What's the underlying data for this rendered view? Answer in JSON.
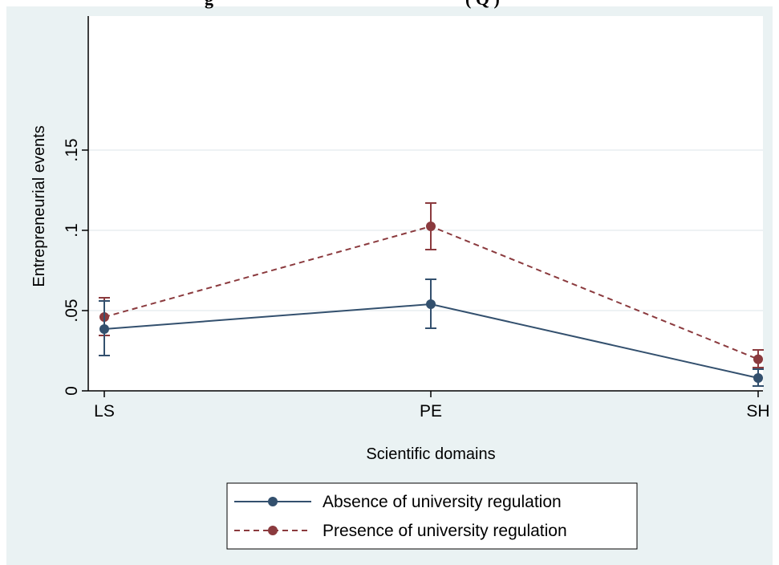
{
  "chart_data": {
    "type": "line",
    "title": "g",
    "title_suffix": "(  Q  )",
    "xlabel": "Scientific domains",
    "ylabel": "Entrepreneurial events",
    "categories": [
      "LS",
      "PE",
      "SH"
    ],
    "ylim": [
      0,
      0.15
    ],
    "yticks": [
      {
        "value": 0,
        "label": "0"
      },
      {
        "value": 0.05,
        "label": ".05"
      },
      {
        "value": 0.1,
        "label": ".1"
      },
      {
        "value": 0.15,
        "label": ".15"
      }
    ],
    "grid": true,
    "legend_position": "bottom",
    "series": [
      {
        "name": "Absence of university regulation",
        "color": "#33506e",
        "dash": "solid",
        "values": [
          0.0385,
          0.054,
          0.008
        ],
        "ci_low": [
          0.022,
          0.039,
          0.003
        ],
        "ci_high": [
          0.056,
          0.0695,
          0.0135
        ]
      },
      {
        "name": "Presence of university regulation",
        "color": "#8b3a3e",
        "dash": "dashed",
        "values": [
          0.046,
          0.1025,
          0.0197
        ],
        "ci_low": [
          0.0345,
          0.088,
          0.0145
        ],
        "ci_high": [
          0.058,
          0.117,
          0.0255
        ]
      }
    ]
  },
  "colors": {
    "outer_background": "#eaf2f3",
    "plot_background": "#ffffff",
    "grid": "#e8eef0"
  }
}
